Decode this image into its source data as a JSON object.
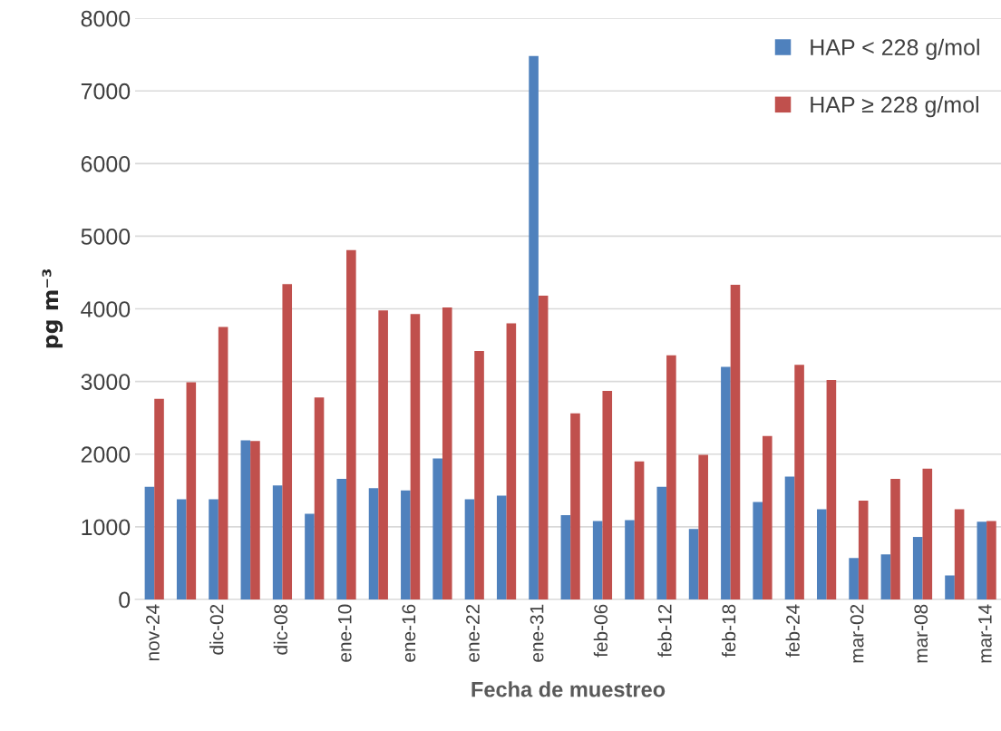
{
  "chart_data": {
    "type": "bar",
    "xlabel": "Fecha de muestreo",
    "ylabel": "pg m⁻³",
    "categories": [
      "nov-24",
      null,
      "dic-02",
      null,
      "dic-08",
      null,
      "ene-10",
      null,
      "ene-16",
      null,
      "ene-22",
      null,
      "ene-31",
      null,
      "feb-06",
      null,
      "feb-12",
      null,
      "feb-18",
      null,
      "feb-24",
      null,
      "mar-02",
      null,
      "mar-08",
      null,
      "mar-14"
    ],
    "series": [
      {
        "name": "HAP < 228 g/mol",
        "color": "#4f81bd",
        "values": [
          1550,
          1380,
          1380,
          2190,
          1570,
          1180,
          1660,
          1530,
          1500,
          1940,
          1380,
          1430,
          7480,
          1160,
          1080,
          1090,
          1550,
          970,
          3200,
          1340,
          1690,
          1240,
          570,
          620,
          860,
          330,
          1070
        ]
      },
      {
        "name": "HAP ≥ 228 g/mol",
        "color": "#c0504d",
        "values": [
          2760,
          2990,
          3750,
          2180,
          4340,
          2780,
          4810,
          3980,
          3930,
          4020,
          3420,
          3800,
          4180,
          2560,
          2870,
          1900,
          3360,
          1990,
          4330,
          2250,
          3230,
          3020,
          1360,
          1660,
          1800,
          1240,
          1080
        ]
      }
    ],
    "ylim": [
      0,
      8000
    ],
    "yticks": [
      0,
      1000,
      2000,
      3000,
      4000,
      5000,
      6000,
      7000,
      8000
    ],
    "grid": "y",
    "legend": "top right"
  }
}
